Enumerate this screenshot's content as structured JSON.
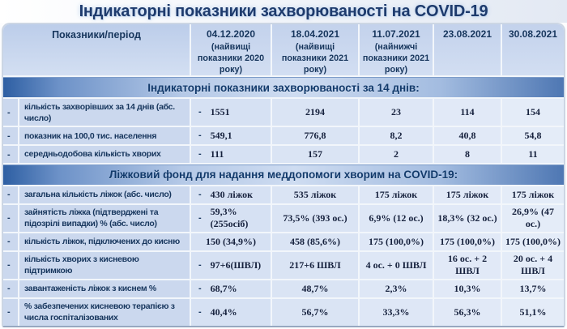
{
  "title": "Індикаторні показники захворюваності на COVID-19",
  "dash_char": "-",
  "colors": {
    "accent_navy": "#17365d",
    "band_blue": "#3a69ae",
    "row_blue": "#ccd9ef",
    "header_blue": "#c5d4ed"
  },
  "table": {
    "header": {
      "label": "Показники/період",
      "columns": [
        {
          "date": "04.12.2020",
          "note": "(найвищі показники 2020 року)"
        },
        {
          "date": "18.04.2021",
          "note": "(найвищі показники 2021 року)"
        },
        {
          "date": "11.07.2021",
          "note": "(найнижчі показники 2021 року)"
        },
        {
          "date": "23.08.2021",
          "note": ""
        },
        {
          "date": "30.08.2021",
          "note": ""
        }
      ]
    },
    "sections": [
      {
        "title": "Індикаторні показники захворюваності за 14 днів:",
        "rows": [
          {
            "label": "кількість захворівших за 14 днів (абс.\nчисло)",
            "value_dash": true,
            "values": [
              "1551",
              "2194",
              "23",
              "114",
              "154"
            ]
          },
          {
            "label": "показник на 100,0 тис. населення",
            "value_dash": true,
            "values": [
              "549,1",
              "776,8",
              "8,2",
              "40,8",
              "54,8"
            ]
          },
          {
            "label": "середньодобова кількість хворих",
            "value_dash": true,
            "values": [
              "111",
              "157",
              "2",
              "8",
              "11"
            ]
          }
        ]
      },
      {
        "title": "Ліжковий фонд для надання меддопомоги хворим на COVID-19:",
        "rows": [
          {
            "label": "загальна кількість ліжок (абс. число)",
            "value_dash": true,
            "values": [
              "430 ліжок",
              "535 ліжок",
              "175 ліжок",
              "175 ліжок",
              "175 ліжок"
            ]
          },
          {
            "label": "зайнятість ліжка (підтверджені та\nпідозрілі випадки)  % (абс. число)",
            "value_dash": true,
            "values": [
              "59,3%\n(255осіб)",
              "73,5% (393 ос.)",
              "6,9% (12 ос.)",
              "18,3% (32 ос.)",
              "26,9% (47 ос.)"
            ]
          },
          {
            "label": "кількість ліжок, підключених до кисню",
            "value_dash": false,
            "values": [
              "150 (34,9%)",
              "458 (85,6%)",
              "175 (100,0%)",
              "175 (100,0%)",
              "175 (100,0%)"
            ]
          },
          {
            "label": "кількість хворих з кисневою\nпідтримкою",
            "value_dash": true,
            "values": [
              "97+6(ШВЛ)",
              "217+6 ШВЛ",
              "4 ос. + 0 ШВЛ",
              "16 ос. + 2\nШВЛ",
              "20 ос. + 4\nШВЛ"
            ]
          },
          {
            "label": "завантаженість ліжок з киснем %",
            "value_dash": true,
            "values": [
              "68,7%",
              "48,7%",
              "2,3%",
              "10,3%",
              "13,7%"
            ]
          },
          {
            "label": "% забезпечених кисневою терапією з\nчисла госпіталізованих",
            "value_dash": true,
            "values": [
              "40,4%",
              "56,7%",
              "33,3%",
              "56,3%",
              "51,1%"
            ]
          }
        ]
      }
    ]
  }
}
